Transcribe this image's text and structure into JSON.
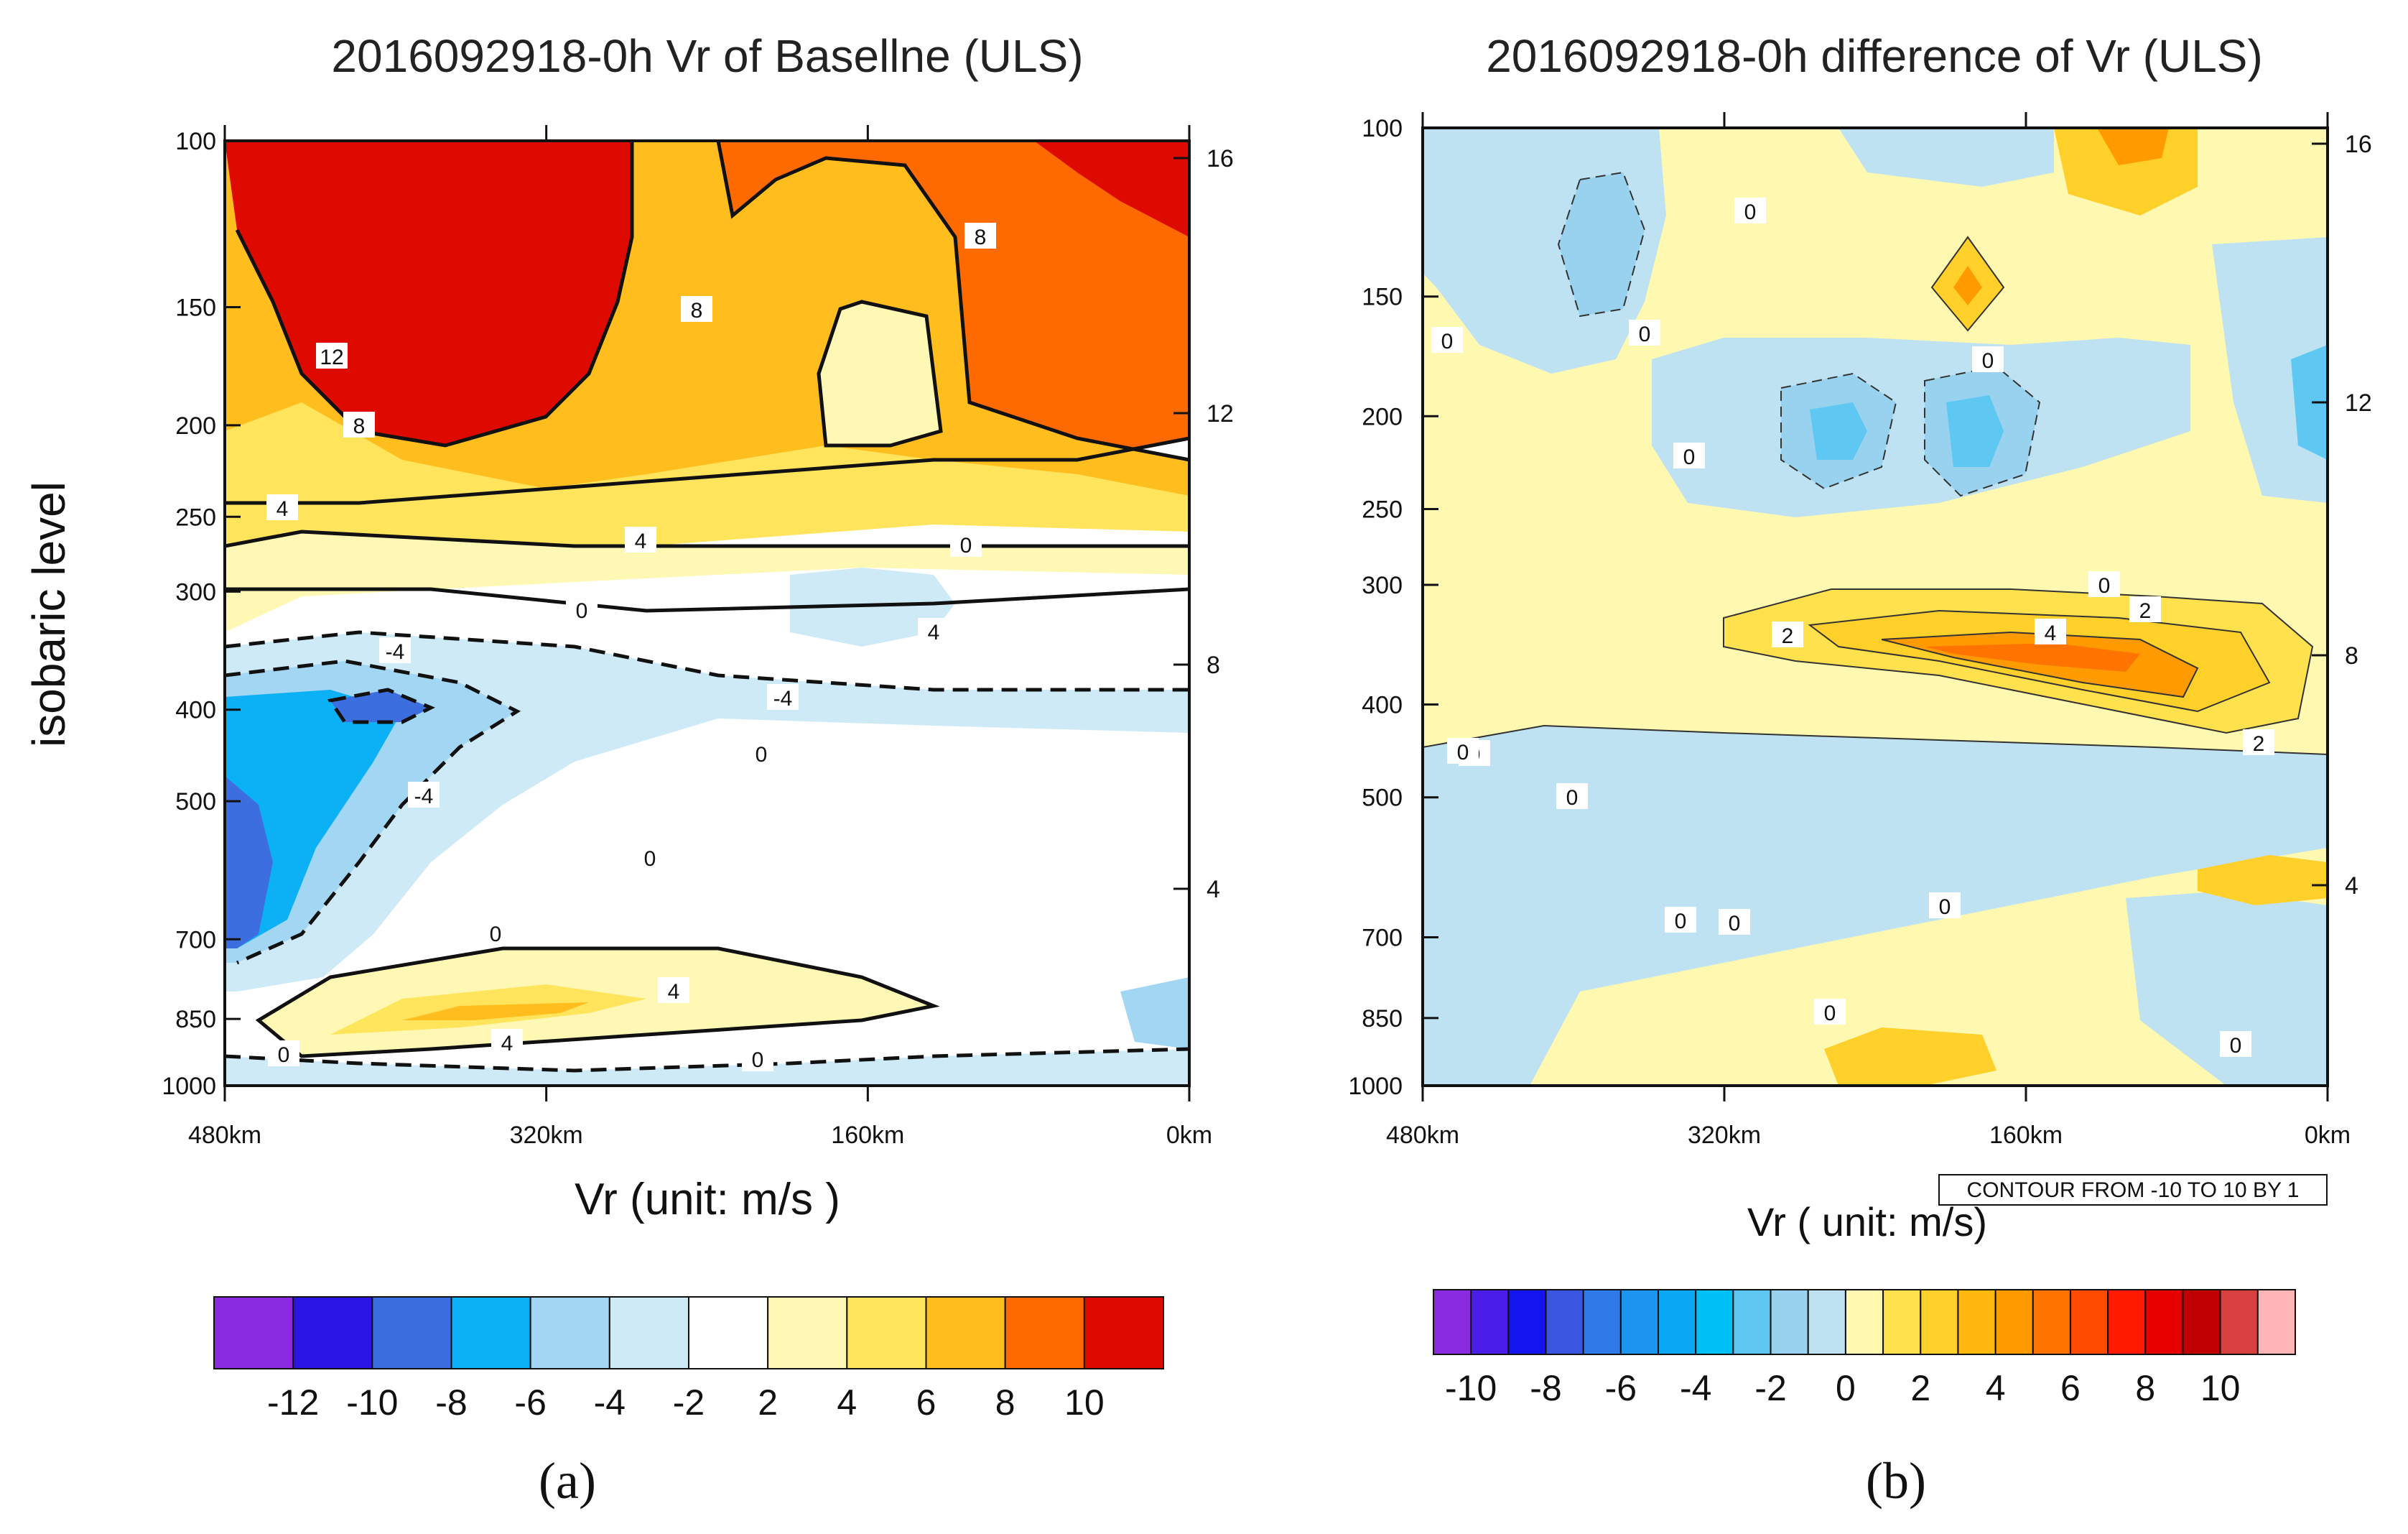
{
  "chart_data": [
    {
      "type": "heatmap",
      "title": "2016092918-0h Vr of Basellne (ULS)",
      "xlabel": "Vr (unit: m/s )",
      "ylabel": "isobaric level",
      "x_ticks": [
        "480km",
        "320km",
        "160km",
        "0km"
      ],
      "x_values": [
        480,
        320,
        160,
        0
      ],
      "y_ticks": [
        "100",
        "150",
        "200",
        "250",
        "300",
        "400",
        "500",
        "700",
        "850",
        "1000"
      ],
      "y_values": [
        100,
        150,
        200,
        250,
        300,
        400,
        500,
        700,
        850,
        1000
      ],
      "y2_ticks": [
        "16",
        "12",
        "8",
        "4"
      ],
      "y2_values": [
        16,
        12,
        8,
        4
      ],
      "contour_labels": [
        "12",
        "8",
        "8",
        "8",
        "4",
        "4",
        "4",
        "0",
        "0",
        "-4",
        "-4",
        "-4",
        "0",
        "0",
        "0",
        "4",
        "4",
        "0",
        "0"
      ],
      "colorbar": {
        "labels": [
          "-12",
          "-10",
          "-8",
          "-6",
          "-4",
          "-2",
          "2",
          "4",
          "6",
          "8",
          "10"
        ],
        "colors": [
          "#8a2be2",
          "#2a14e6",
          "#3d6ee0",
          "#0cb0f5",
          "#a3d6f2",
          "#cfeaf7",
          "#ffffff",
          "#fff8b5",
          "#ffe45c",
          "#ffbe1e",
          "#ff6a00",
          "#de0a00"
        ]
      },
      "panel_label": "(a)"
    },
    {
      "type": "heatmap",
      "title": "2016092918-0h difference of Vr  (ULS)",
      "xlabel": "Vr ( unit: m/s)",
      "ylabel": "",
      "x_ticks": [
        "480km",
        "320km",
        "160km",
        "0km"
      ],
      "x_values": [
        480,
        320,
        160,
        0
      ],
      "y_ticks": [
        "100",
        "150",
        "200",
        "250",
        "300",
        "400",
        "500",
        "700",
        "850",
        "1000"
      ],
      "y_values": [
        100,
        150,
        200,
        250,
        300,
        400,
        500,
        700,
        850,
        1000
      ],
      "y2_ticks": [
        "16",
        "12",
        "8",
        "4"
      ],
      "y2_values": [
        16,
        12,
        8,
        4
      ],
      "contour_labels": [
        "0",
        "0",
        "0",
        "0",
        "0",
        "0",
        "2",
        "4",
        "2",
        "2",
        "0",
        "0",
        "0",
        "0",
        "0",
        "0",
        "0",
        "0"
      ],
      "annotation": "CONTOUR FROM -10 TO 10 BY 1",
      "colorbar": {
        "labels": [
          "-10",
          "-8",
          "-6",
          "-4",
          "-2",
          "0",
          "2",
          "4",
          "6",
          "8",
          "10"
        ],
        "colors": [
          "#8a2be2",
          "#4a1ee8",
          "#1414f0",
          "#3a55e0",
          "#2e7ae8",
          "#1d95f0",
          "#0aa8f5",
          "#00c0f8",
          "#5ec8f2",
          "#98d2ee",
          "#bfe2f2",
          "#fff8b0",
          "#ffe14d",
          "#ffcf2a",
          "#ffb810",
          "#ff9a00",
          "#ff7300",
          "#ff4b00",
          "#ff1a00",
          "#e60000",
          "#c00000",
          "#d94040",
          "#ffb5b5"
        ]
      },
      "panel_label": "(b)"
    }
  ]
}
